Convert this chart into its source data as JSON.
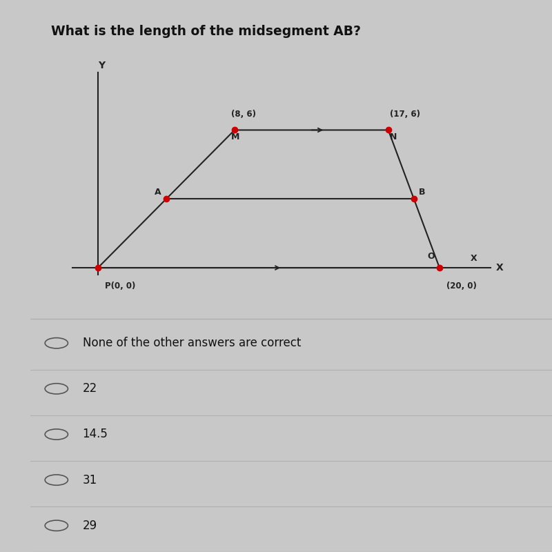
{
  "title": "What is the length of the midsegment AB?",
  "title_fontsize": 13.5,
  "title_fontweight": "bold",
  "bg_color": "#c8c8c8",
  "panel_color": "#d4d0cc",
  "left_bar_color": "#5a5a5a",
  "points": {
    "P": [
      0,
      0
    ],
    "O": [
      20,
      0
    ],
    "M": [
      8,
      6
    ],
    "N": [
      17,
      6
    ],
    "A": [
      4,
      3
    ],
    "B": [
      18.5,
      3
    ]
  },
  "point_color": "#cc0000",
  "line_color": "#222222",
  "options": [
    "None of the other answers are correct",
    "22",
    "14.5",
    "31",
    "29"
  ],
  "option_fontsize": 12,
  "divider_color": "#b0b0b0"
}
